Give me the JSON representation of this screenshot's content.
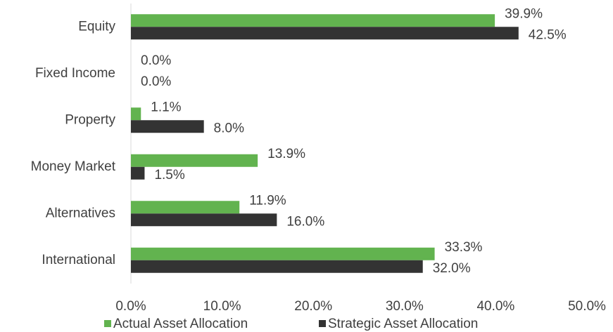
{
  "chart_data": {
    "type": "bar",
    "orientation": "horizontal",
    "categories": [
      "Equity",
      "Fixed Income",
      "Property",
      "Money Market",
      "Alternatives",
      "International"
    ],
    "series": [
      {
        "name": "Actual Asset Allocation",
        "color": "#62b34f",
        "values": [
          39.9,
          0.0,
          1.1,
          13.9,
          11.9,
          33.3
        ],
        "value_labels": [
          "39.9%",
          "0.0%",
          "1.1%",
          "13.9%",
          "11.9%",
          "33.3%"
        ]
      },
      {
        "name": "Strategic Asset Allocation",
        "color": "#333333",
        "values": [
          42.5,
          0.0,
          8.0,
          1.5,
          16.0,
          32.0
        ],
        "value_labels": [
          "42.5%",
          "0.0%",
          "8.0%",
          "1.5%",
          "16.0%",
          "32.0%"
        ]
      }
    ],
    "xlim": [
      0,
      50
    ],
    "xticks": [
      {
        "value": 0,
        "label": "0.0%"
      },
      {
        "value": 10,
        "label": "10.0%"
      },
      {
        "value": 20,
        "label": "20.0%"
      },
      {
        "value": 30,
        "label": "30.0%"
      },
      {
        "value": 40,
        "label": "40.0%"
      },
      {
        "value": 50,
        "label": "50.0%"
      }
    ],
    "grid": false,
    "legend": "bottom"
  }
}
